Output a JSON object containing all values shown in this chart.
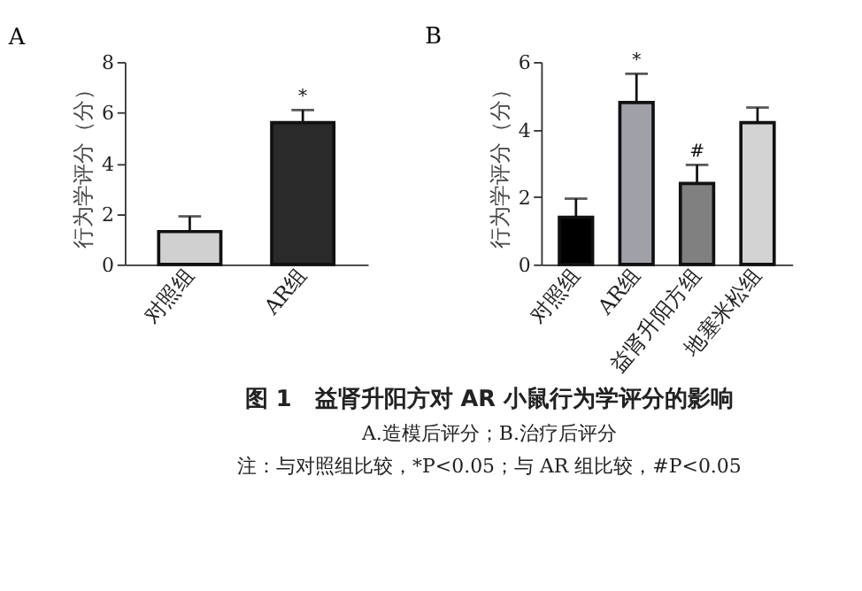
{
  "chart_data": [
    {
      "type": "bar",
      "title": "A",
      "ylabel": "行为学评分（分）",
      "categories": [
        "对照组",
        "AR组"
      ],
      "values": [
        1.3,
        5.6
      ],
      "colors": [
        "#d0d0d0",
        "#2a2a2a"
      ],
      "errors": [
        [
          1.3,
          1.9
        ],
        [
          5.6,
          6.1
        ]
      ],
      "ylim": [
        0,
        8
      ],
      "yticks": [
        0,
        2,
        4,
        6,
        8
      ],
      "annotations": [
        {
          "text": "*",
          "x": "AR组",
          "y": 6.1
        }
      ]
    },
    {
      "type": "bar",
      "title": "B",
      "ylabel": "行为学评分（分）",
      "categories": [
        "对照组",
        "AR组",
        "益肾升阳方组",
        "地塞米松组"
      ],
      "values": [
        1.4,
        4.8,
        2.4,
        4.2
      ],
      "colors": [
        "#000000",
        "#a0a0a8",
        "#808080",
        "#d3d3d3"
      ],
      "errors": [
        [
          1.4,
          1.95
        ],
        [
          4.8,
          5.65
        ],
        [
          2.4,
          2.95
        ],
        [
          4.2,
          4.65
        ]
      ],
      "ylim": [
        0,
        6
      ],
      "yticks": [
        0,
        2,
        4,
        6
      ],
      "annotations": [
        {
          "text": "*",
          "x": "AR组",
          "y": 5.65
        },
        {
          "text": "#",
          "x": "益肾升阳方组",
          "y": 2.95
        },
        "图 1　益肾升阳方对 AR 小鼠行为学评分的影响",
        "A.造模后评分；B.治疗后评分",
        "注：与对照组比较，*P<0.05；与 AR 组比较，#P<0.05"
      ]
    }
  ]
}
